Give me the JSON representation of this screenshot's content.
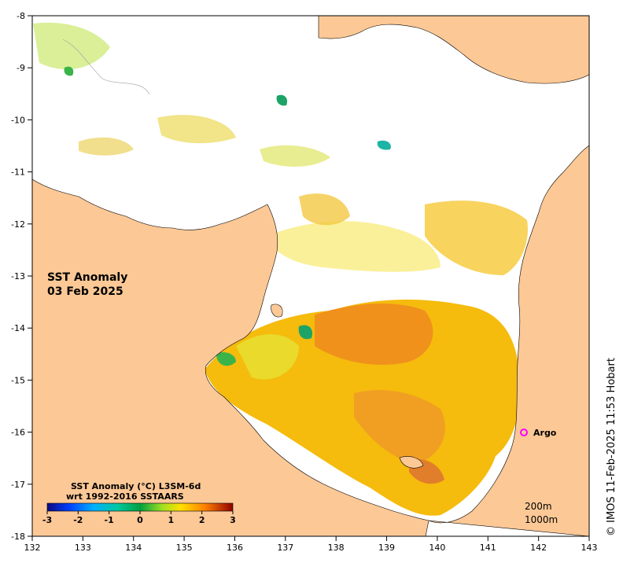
{
  "title": {
    "line1": "SST Anomaly",
    "line2": "03 Feb 2025"
  },
  "axes": {
    "x_ticks": [
      "132",
      "133",
      "134",
      "135",
      "136",
      "137",
      "138",
      "139",
      "140",
      "141",
      "142",
      "143"
    ],
    "y_ticks": [
      "-8",
      "-9",
      "-10",
      "-11",
      "-12",
      "-13",
      "-14",
      "-15",
      "-16",
      "-17",
      "-18"
    ]
  },
  "colorbar": {
    "title_line1": "SST Anomaly (°C) L3SM-6d",
    "title_line2": "wrt 1992-2016 SSTAARS",
    "tick_labels": [
      "-3",
      "-2",
      "-1",
      "0",
      "1",
      "2",
      "3"
    ]
  },
  "marker": {
    "label": "Argo",
    "lon": 141.7,
    "lat": -16.0,
    "color": "#ff00ff"
  },
  "depth_legend": {
    "line1": "200m",
    "line2": "1000m"
  },
  "credit": "© IMOS 11-Feb-2025 11:53 Hobart",
  "colors": {
    "land": "#fcc896",
    "sea": "#ffffff",
    "marker": "#ff00ff"
  }
}
